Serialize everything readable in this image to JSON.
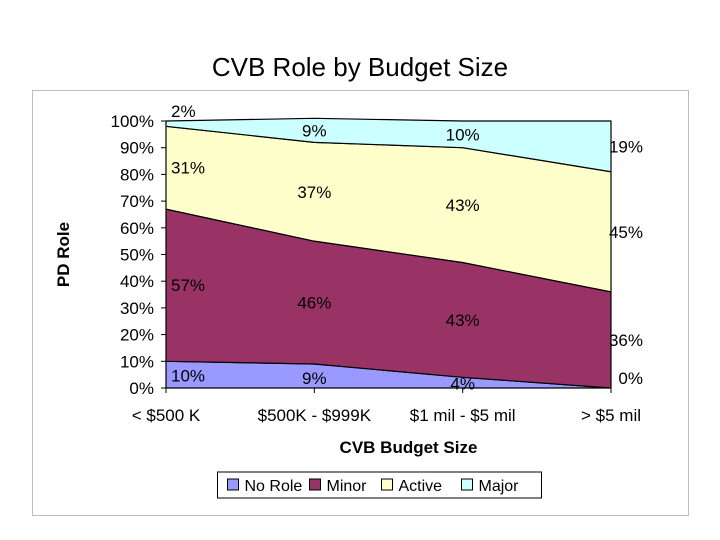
{
  "slide": {
    "title": "CVB Role by Budget Size"
  },
  "chart_data": {
    "type": "area",
    "stacked": true,
    "percent": true,
    "title": "CVB Role by Budget Size",
    "xlabel": "CVB Budget Size",
    "ylabel": "PD Role",
    "ylim": [
      0,
      100
    ],
    "yticks": [
      "0%",
      "10%",
      "20%",
      "30%",
      "40%",
      "50%",
      "60%",
      "70%",
      "80%",
      "90%",
      "100%"
    ],
    "categories": [
      "< $500 K",
      "$500K - $999K",
      "$1 mil - $5 mil",
      "> $5 mil"
    ],
    "series": [
      {
        "name": "No Role",
        "values": [
          10,
          9,
          4,
          0
        ],
        "color": "#9999ff"
      },
      {
        "name": "Minor",
        "values": [
          57,
          46,
          43,
          36
        ],
        "color": "#993366"
      },
      {
        "name": "Active",
        "values": [
          31,
          37,
          43,
          45
        ],
        "color": "#ffffcc"
      },
      {
        "name": "Major",
        "values": [
          2,
          9,
          10,
          19
        ],
        "color": "#ccffff"
      }
    ],
    "legend": {
      "position": "bottom"
    },
    "grid": false
  }
}
